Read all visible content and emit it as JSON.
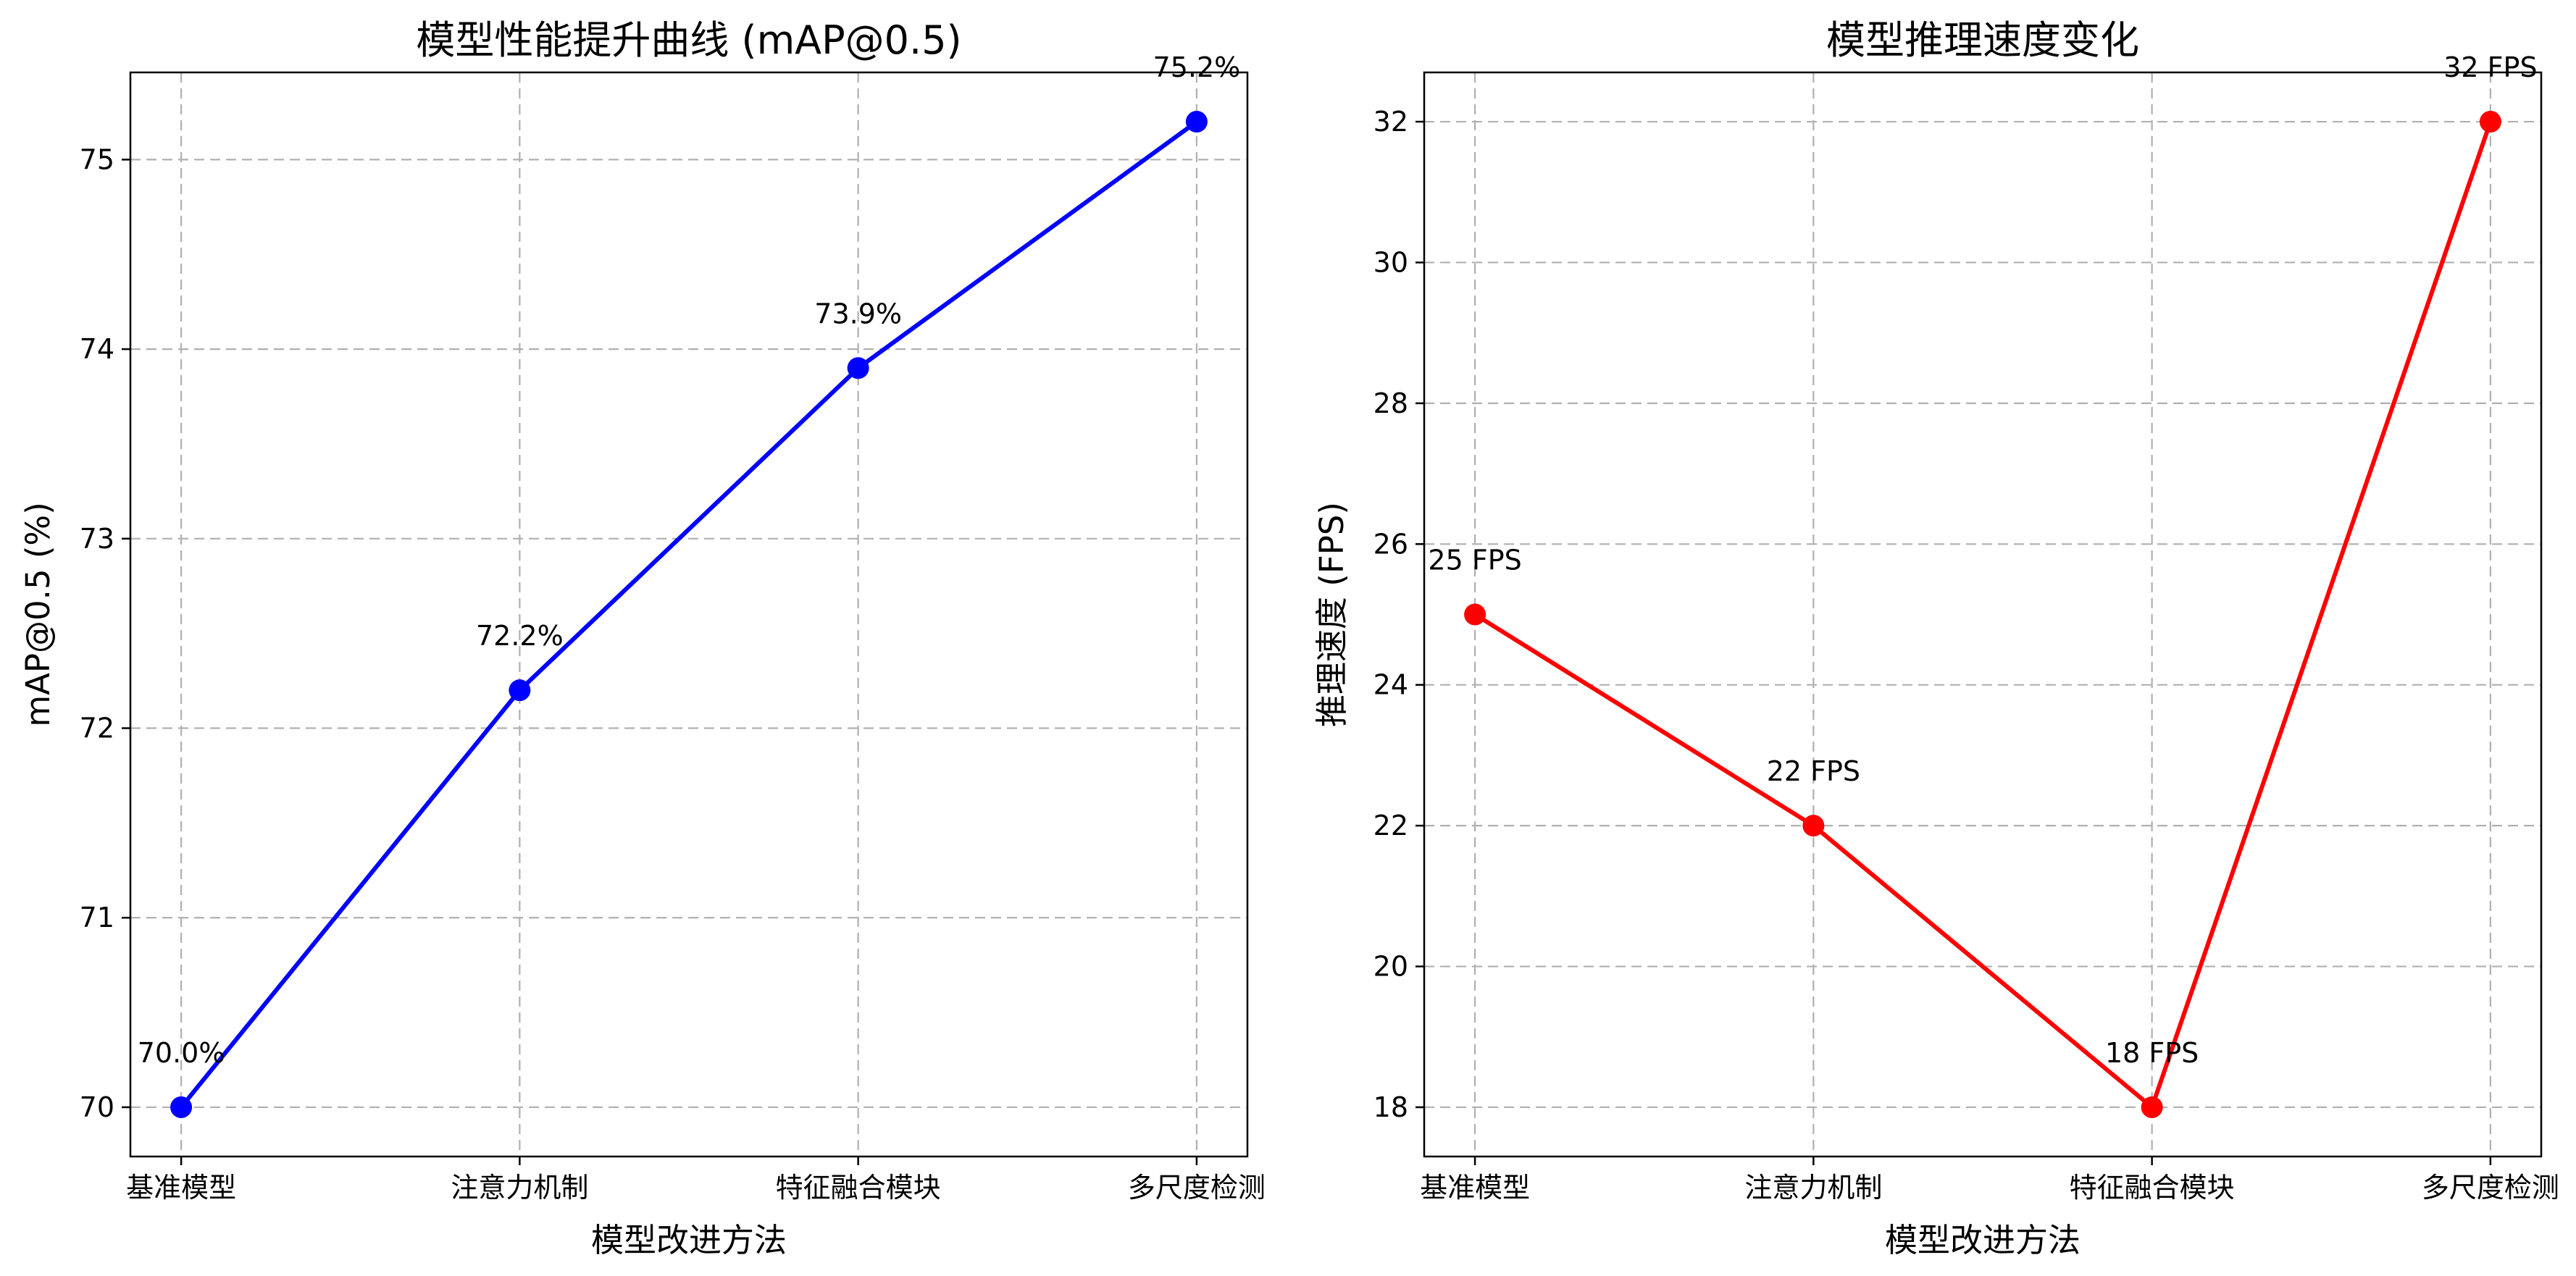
{
  "chart_data": [
    {
      "type": "line",
      "title": "模型性能提升曲线 (mAP@0.5)",
      "xlabel": "模型改进方法",
      "ylabel": "mAP@0.5 (%)",
      "categories": [
        "基准模型",
        "注意力机制",
        "特征融合模块",
        "多尺度检测"
      ],
      "series": [
        {
          "values": [
            70.0,
            72.2,
            73.9,
            75.2
          ],
          "data_labels": [
            "70.0%",
            "72.2%",
            "73.9%",
            "75.2%"
          ],
          "color": "#0000ff"
        }
      ],
      "ylim": [
        69.74,
        75.46
      ],
      "yticks": [
        70,
        71,
        72,
        73,
        74,
        75
      ],
      "grid": true
    },
    {
      "type": "line",
      "title": "模型推理速度变化",
      "xlabel": "模型改进方法",
      "ylabel": "推理速度 (FPS)",
      "categories": [
        "基准模型",
        "注意力机制",
        "特征融合模块",
        "多尺度检测"
      ],
      "series": [
        {
          "values": [
            25,
            22,
            18,
            32
          ],
          "data_labels": [
            "25 FPS",
            "22 FPS",
            "18 FPS",
            "32 FPS"
          ],
          "color": "#ff0000"
        }
      ],
      "ylim": [
        17.3,
        32.7
      ],
      "yticks": [
        18,
        20,
        22,
        24,
        26,
        28,
        30,
        32
      ],
      "grid": true
    }
  ]
}
